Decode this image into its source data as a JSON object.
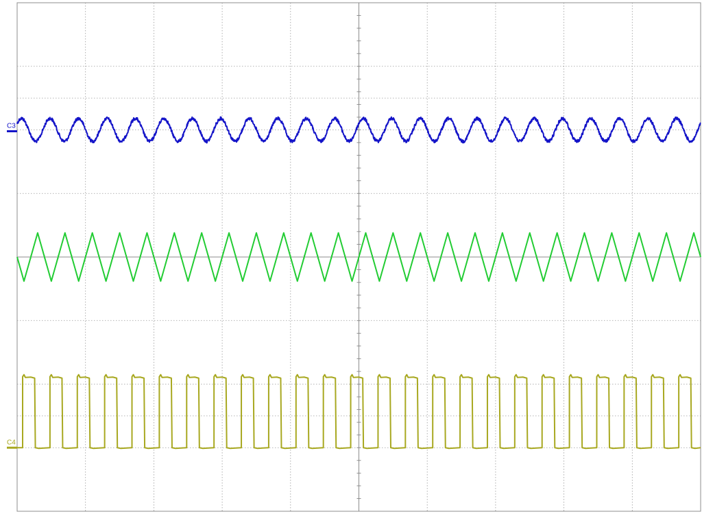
{
  "chart_data": {
    "type": "line",
    "title": "",
    "xlabel": "",
    "ylabel": "",
    "grid": true,
    "divisions": {
      "x": 10,
      "y": 8
    },
    "series": [
      {
        "name": "C3",
        "label": "C3",
        "shape": "sine",
        "color": "#1414c8",
        "offset_div": 2.0,
        "amplitude_div": 0.18,
        "cycles": 24,
        "noise_div": 0.05
      },
      {
        "name": "",
        "label": "",
        "shape": "triangle",
        "color": "#22cc33",
        "offset_div": 0.0,
        "amplitude_div": 0.38,
        "cycles": 25,
        "noise_div": 0.0
      },
      {
        "name": "C4",
        "label": "C4",
        "shape": "square",
        "color": "#a8a820",
        "offset_div": -3.0,
        "amplitude_div": 1.2,
        "cycles": 25,
        "noise_div": 0.0
      }
    ]
  }
}
